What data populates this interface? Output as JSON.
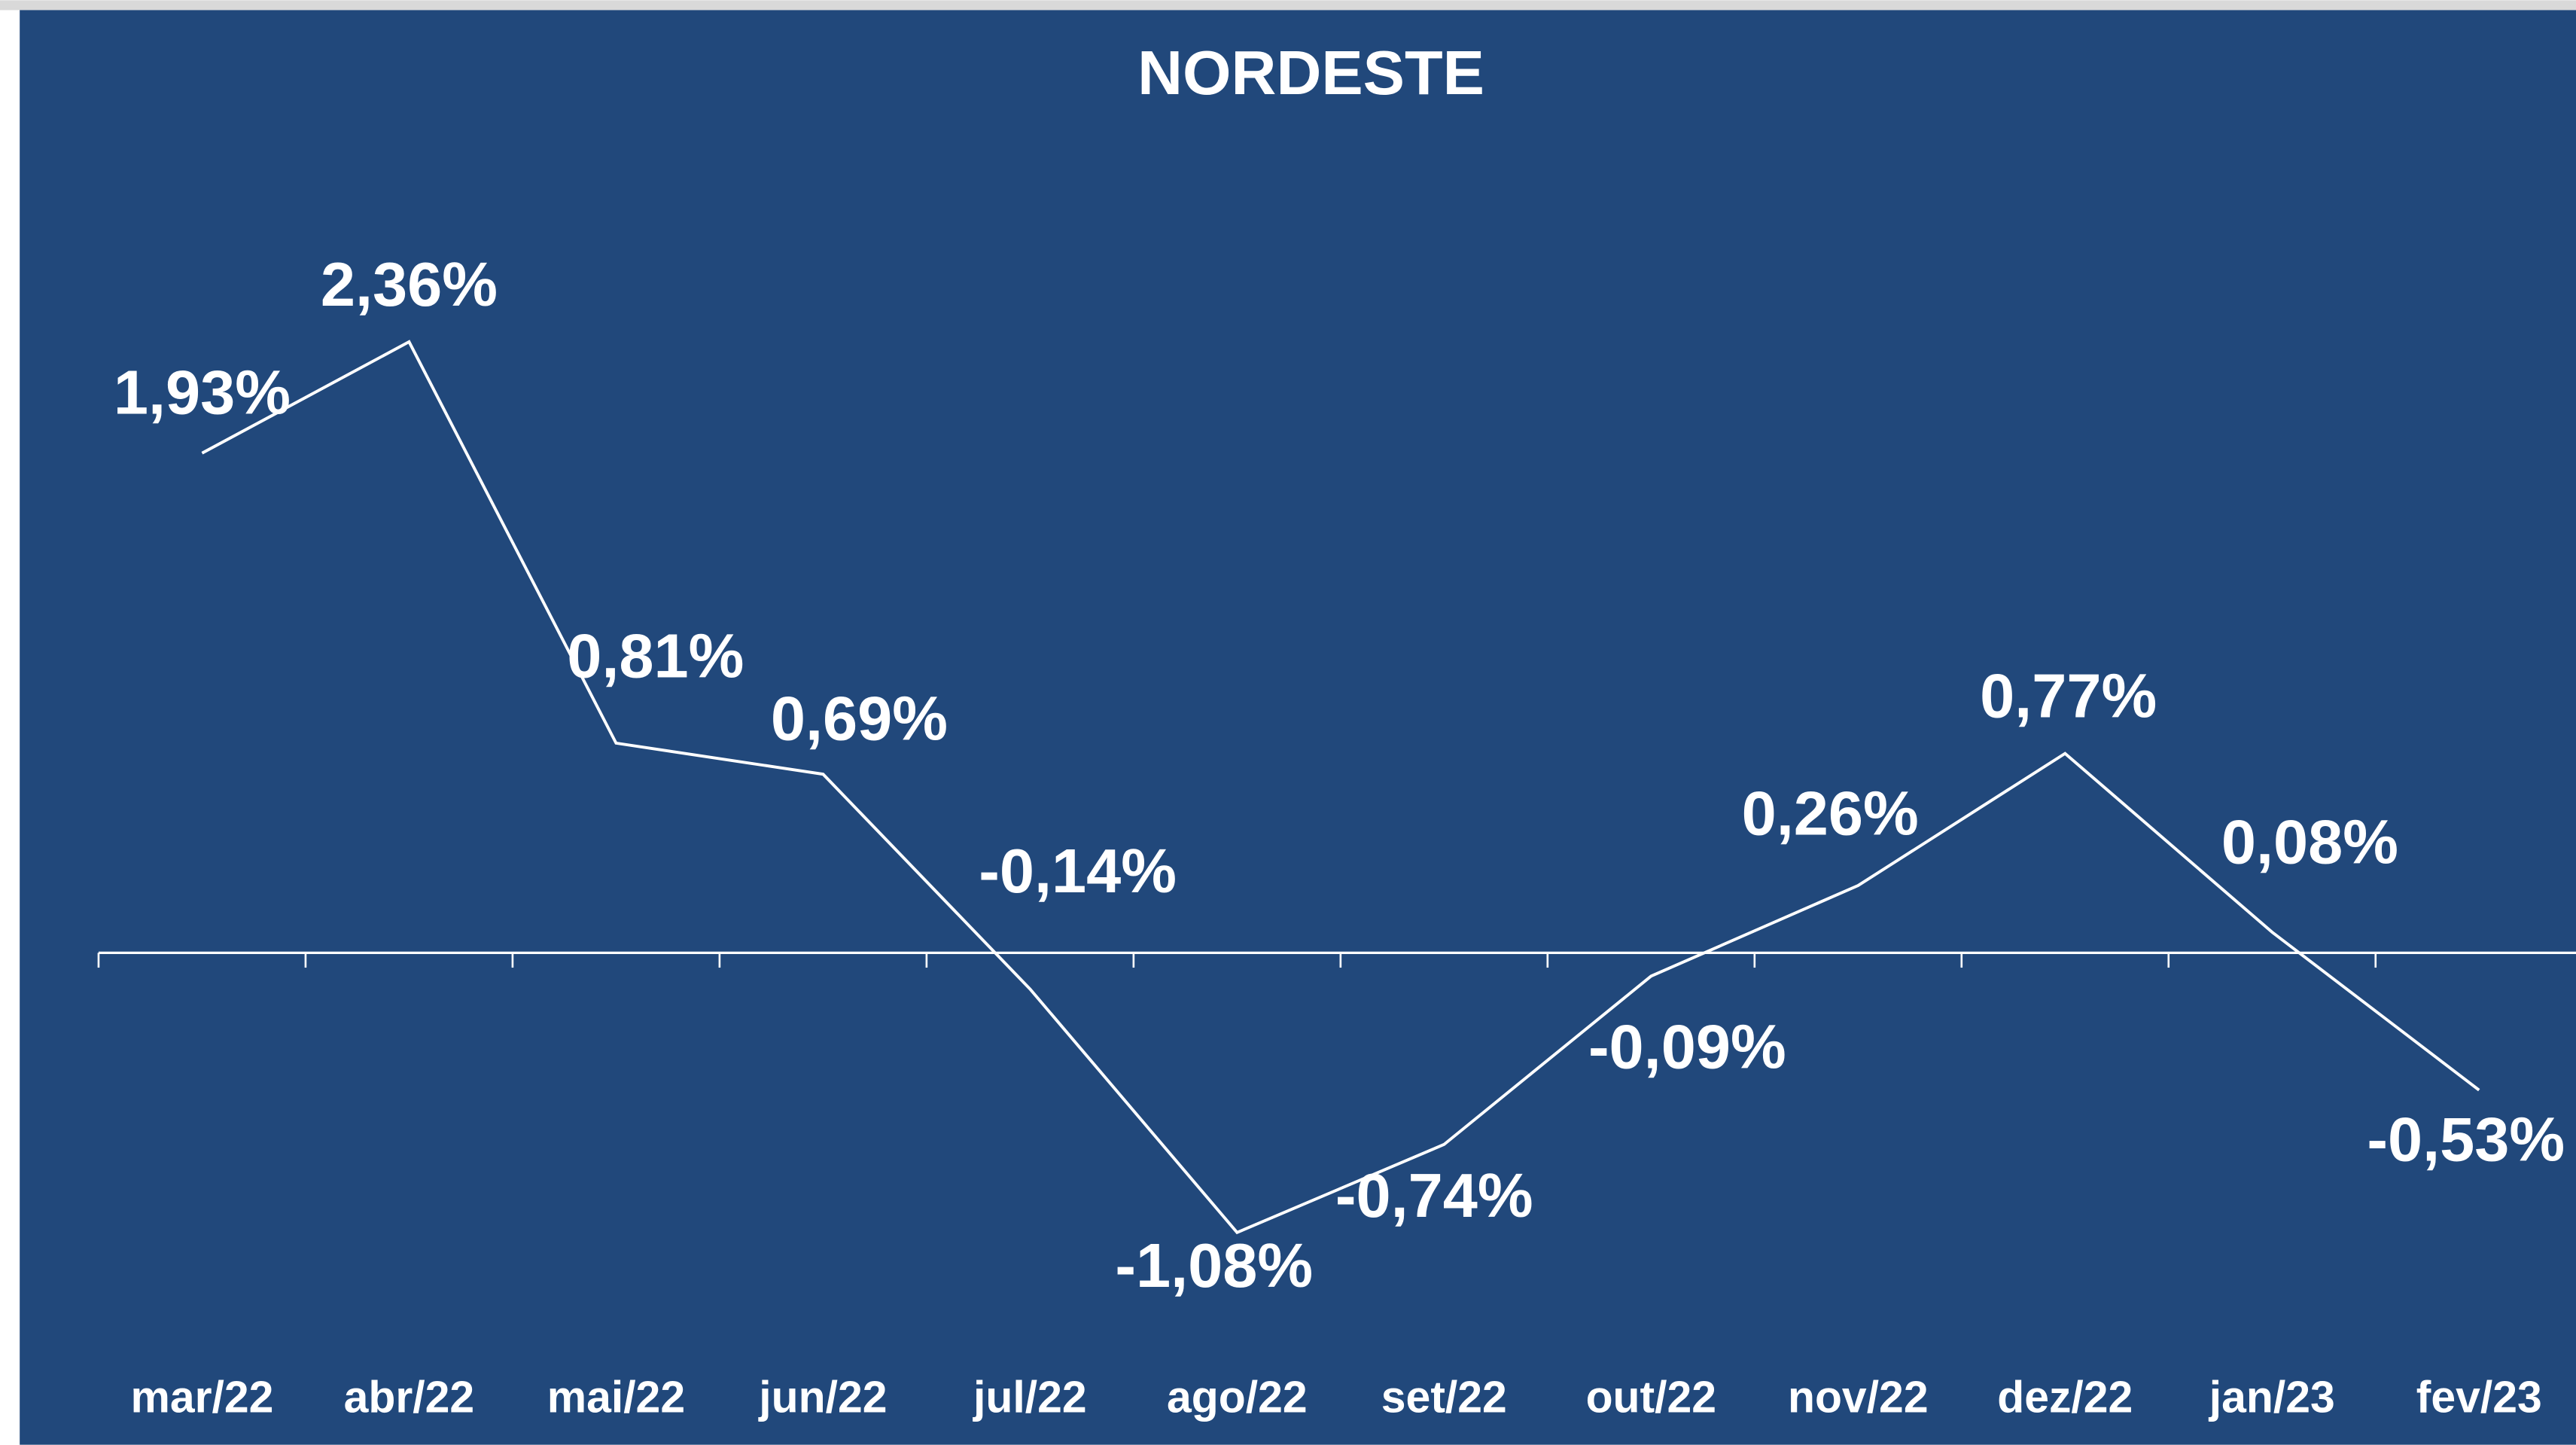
{
  "chart_data": {
    "type": "line",
    "title": "NORDESTE",
    "categories": [
      "mar/22",
      "abr/22",
      "mai/22",
      "jun/22",
      "jul/22",
      "ago/22",
      "set/22",
      "out/22",
      "nov/22",
      "dez/22",
      "jan/23",
      "fev/23"
    ],
    "values": [
      1.93,
      2.36,
      0.81,
      0.69,
      -0.14,
      -1.08,
      -0.74,
      -0.09,
      0.26,
      0.77,
      0.08,
      -0.53
    ],
    "value_labels": [
      "1,93%",
      "2,36%",
      "0,81%",
      "0,69%",
      "-0,14%",
      "-1,08%",
      "-0,74%",
      "-0,09%",
      "0,26%",
      "0,77%",
      "0,08%",
      "-0,53%"
    ],
    "color": "#ffffff",
    "background": "#21487b",
    "ylim": [
      -1.5,
      3
    ]
  }
}
